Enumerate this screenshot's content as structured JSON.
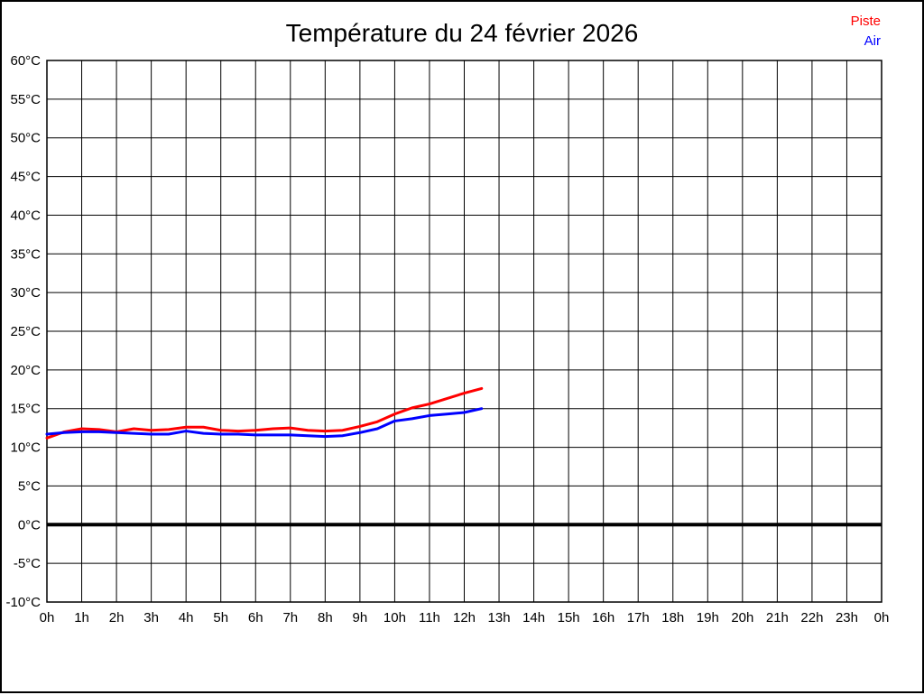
{
  "title": "Température du 24 février 2026",
  "legend": [
    {
      "label": "Piste",
      "color": "#ff0000"
    },
    {
      "label": "Air",
      "color": "#0000ff"
    }
  ],
  "chart_data": {
    "type": "line",
    "title": "Température du 24 février 2026",
    "xlabel": "",
    "ylabel": "",
    "xlim": [
      0,
      24
    ],
    "ylim": [
      -10,
      60
    ],
    "y_step": 5,
    "grid": true,
    "zero_line_bold": true,
    "legend_position": "top-right",
    "x_tick_labels": [
      "0h",
      "1h",
      "2h",
      "3h",
      "4h",
      "5h",
      "6h",
      "7h",
      "8h",
      "9h",
      "10h",
      "11h",
      "12h",
      "13h",
      "14h",
      "15h",
      "16h",
      "17h",
      "18h",
      "19h",
      "20h",
      "21h",
      "22h",
      "23h",
      "0h"
    ],
    "y_tick_labels": [
      "60°C",
      "55°C",
      "50°C",
      "45°C",
      "40°C",
      "35°C",
      "30°C",
      "25°C",
      "20°C",
      "15°C",
      "10°C",
      "5°C",
      "0°C",
      "-5°C",
      "-10°C"
    ],
    "x": [
      0,
      0.5,
      1,
      1.5,
      2,
      2.5,
      3,
      3.5,
      4,
      4.5,
      5,
      5.5,
      6,
      6.5,
      7,
      7.5,
      8,
      8.5,
      9,
      9.5,
      10,
      10.5,
      11,
      11.5,
      12,
      12.5
    ],
    "series": [
      {
        "name": "Piste",
        "color": "#ff0000",
        "values": [
          11.2,
          12.0,
          12.4,
          12.3,
          12.0,
          12.4,
          12.2,
          12.3,
          12.6,
          12.6,
          12.2,
          12.1,
          12.2,
          12.4,
          12.5,
          12.2,
          12.1,
          12.2,
          12.7,
          13.3,
          14.3,
          15.1,
          15.6,
          16.3,
          17.0,
          17.6
        ]
      },
      {
        "name": "Air",
        "color": "#0000ff",
        "values": [
          11.7,
          11.9,
          12.0,
          12.0,
          11.9,
          11.8,
          11.7,
          11.7,
          12.1,
          11.8,
          11.7,
          11.7,
          11.6,
          11.6,
          11.6,
          11.5,
          11.4,
          11.5,
          11.9,
          12.4,
          13.4,
          13.7,
          14.1,
          14.3,
          14.5,
          15.0
        ]
      }
    ]
  }
}
